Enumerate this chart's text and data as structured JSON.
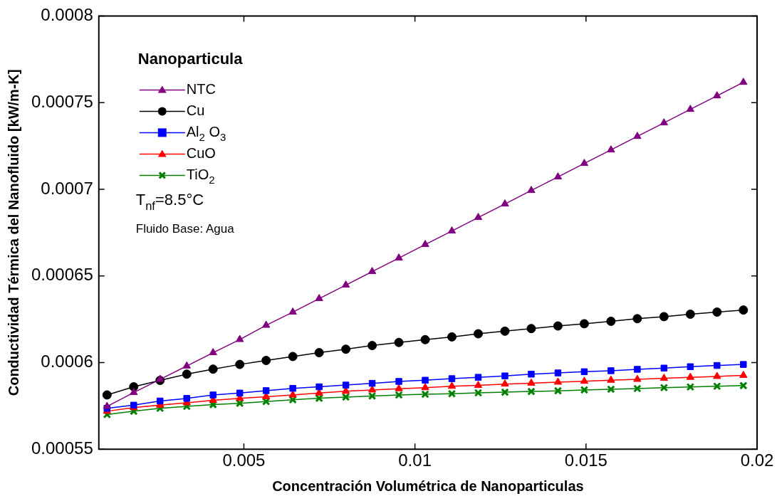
{
  "chart_data": {
    "type": "line",
    "xlabel": "Concentración Volumétrica de Nanoparticulas",
    "ylabel": "Conductividad Térmica del Nanofluido [kW/m-K]",
    "legend_title": "Nanoparticula",
    "x": [
      0.001,
      0.00178,
      0.00255,
      0.00333,
      0.0041,
      0.00488,
      0.00565,
      0.00643,
      0.0072,
      0.00798,
      0.00875,
      0.00953,
      0.0103,
      0.01108,
      0.01185,
      0.01263,
      0.0134,
      0.01418,
      0.01495,
      0.01573,
      0.0165,
      0.01728,
      0.01805,
      0.01883,
      0.0196
    ],
    "series": [
      {
        "name": "NTC",
        "color": "#800080",
        "marker": "triangle",
        "values": [
          0.0005747,
          0.0005827,
          0.0005903,
          0.000598,
          0.0006057,
          0.0006133,
          0.0006215,
          0.0006291,
          0.0006369,
          0.0006447,
          0.0006525,
          0.0006603,
          0.0006681,
          0.0006759,
          0.0006837,
          0.0006915,
          0.0006993,
          0.0007071,
          0.0007149,
          0.0007227,
          0.0007305,
          0.0007383,
          0.0007461,
          0.0007539,
          0.0007617
        ]
      },
      {
        "name": "Cu",
        "color": "#000000",
        "marker": "circle",
        "values": [
          0.0005813,
          0.000586,
          0.0005897,
          0.0005933,
          0.0005962,
          0.0005989,
          0.0006012,
          0.0006035,
          0.0006057,
          0.0006077,
          0.0006098,
          0.0006116,
          0.0006132,
          0.0006148,
          0.0006166,
          0.0006181,
          0.0006196,
          0.0006211,
          0.0006224,
          0.0006238,
          0.0006253,
          0.0006265,
          0.0006279,
          0.0006291,
          0.0006303
        ]
      },
      {
        "name": "Al$_{2}$ O$_{3}$",
        "color": "#0000ff",
        "marker": "square",
        "values": [
          0.0005736,
          0.0005754,
          0.0005778,
          0.0005793,
          0.0005813,
          0.0005824,
          0.0005838,
          0.0005851,
          0.000586,
          0.000587,
          0.000588,
          0.0005891,
          0.0005898,
          0.0005907,
          0.0005915,
          0.0005923,
          0.0005933,
          0.000594,
          0.0005947,
          0.0005953,
          0.0005961,
          0.0005968,
          0.0005976,
          0.0005983,
          0.0005989
        ]
      },
      {
        "name": "CuO",
        "color": "#ff0000",
        "marker": "triangle",
        "values": [
          0.0005719,
          0.000574,
          0.0005754,
          0.0005768,
          0.0005782,
          0.0005793,
          0.0005803,
          0.0005813,
          0.0005824,
          0.0005834,
          0.0005842,
          0.0005849,
          0.0005855,
          0.0005863,
          0.0005868,
          0.0005876,
          0.0005881,
          0.0005887,
          0.0005892,
          0.0005898,
          0.0005903,
          0.0005909,
          0.0005915,
          0.000592,
          0.0005926
        ]
      },
      {
        "name": "TiO$_{2}$",
        "color": "#008000",
        "marker": "cross",
        "values": [
          0.00057,
          0.0005719,
          0.0005736,
          0.0005747,
          0.0005757,
          0.0005765,
          0.0005775,
          0.0005785,
          0.0005794,
          0.0005801,
          0.0005807,
          0.0005813,
          0.0005817,
          0.000582,
          0.0005825,
          0.0005829,
          0.0005833,
          0.0005837,
          0.0005842,
          0.0005846,
          0.000585,
          0.0005855,
          0.0005859,
          0.0005863,
          0.0005867
        ]
      }
    ],
    "annotations": [
      "T$_{nf}$=8.5°C",
      "Fluido Base: Agua"
    ],
    "xlim": [
      0.00076,
      0.02
    ],
    "xticks": [
      0.005,
      0.01,
      0.015,
      0.02
    ],
    "ylim": [
      0.00055,
      0.0008
    ],
    "yticks": [
      0.00055,
      0.0006,
      0.00065,
      0.0007,
      0.00075,
      0.0008
    ],
    "grid": false,
    "legend": "top left",
    "line_style": "solid"
  }
}
